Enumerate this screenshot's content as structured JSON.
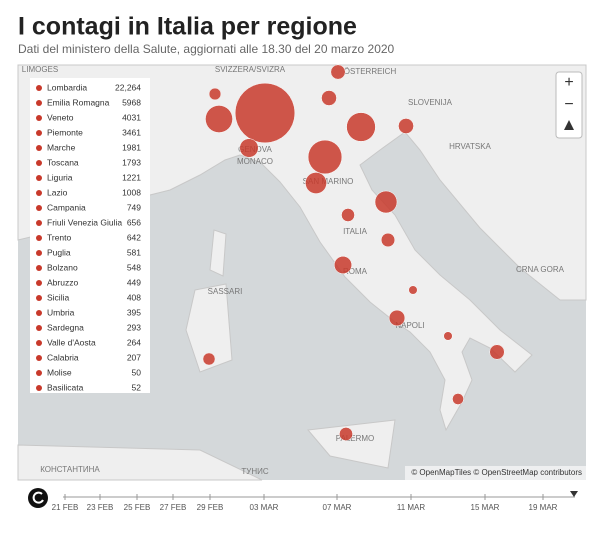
{
  "header": {
    "title": "I contagi in Italia per regione",
    "subtitle": "Dati del ministero della Salute, aggiornati alle 18.30 del 20 marzo 2020"
  },
  "regions": {
    "names": [
      "Lombardia",
      "Emilia Romagna",
      "Veneto",
      "Piemonte",
      "Marche",
      "Toscana",
      "Liguria",
      "Lazio",
      "Campania",
      "Friuli Venezia Giulia",
      "Trento",
      "Puglia",
      "Bolzano",
      "Abruzzo",
      "Sicilia",
      "Umbria",
      "Sardegna",
      "Valle d'Aosta",
      "Calabria",
      "Molise",
      "Basilicata"
    ],
    "values": [
      22264,
      5968,
      4031,
      3461,
      1981,
      1793,
      1221,
      1008,
      749,
      656,
      642,
      581,
      548,
      449,
      408,
      395,
      293,
      264,
      207,
      50,
      52
    ],
    "value_labels": [
      "22,264",
      "5968",
      "4031",
      "3461",
      "1981",
      "1793",
      "1221",
      "1008",
      "749",
      "656",
      "642",
      "581",
      "548",
      "449",
      "408",
      "395",
      "293",
      "264",
      "207",
      "50",
      "52"
    ],
    "color": "#c8392b"
  },
  "map_labels": [
    "LIMOGES",
    "SVIZZERA/SVIZRA",
    "ÖSTERREICH",
    "MONACO",
    "GENOVA",
    "SAN MARINO",
    "ITALIA",
    "ROMA",
    "NAPOLI",
    "SASSARI",
    "PALERMO",
    "ТУНИС",
    "SLOVENIJA",
    "HRVATSKA",
    "CRNA GORA",
    "КОНСТАНТИНА"
  ],
  "controls": {
    "zoom_in": "+",
    "zoom_out": "−"
  },
  "attribution": "© OpenMapTiles © OpenStreetMap contributors",
  "timeline": {
    "dates": [
      "21 FEB",
      "23 FEB",
      "25 FEB",
      "27 FEB",
      "29 FEB",
      "03 MAR",
      "07 MAR",
      "11 MAR",
      "15 MAR",
      "19 MAR"
    ]
  }
}
